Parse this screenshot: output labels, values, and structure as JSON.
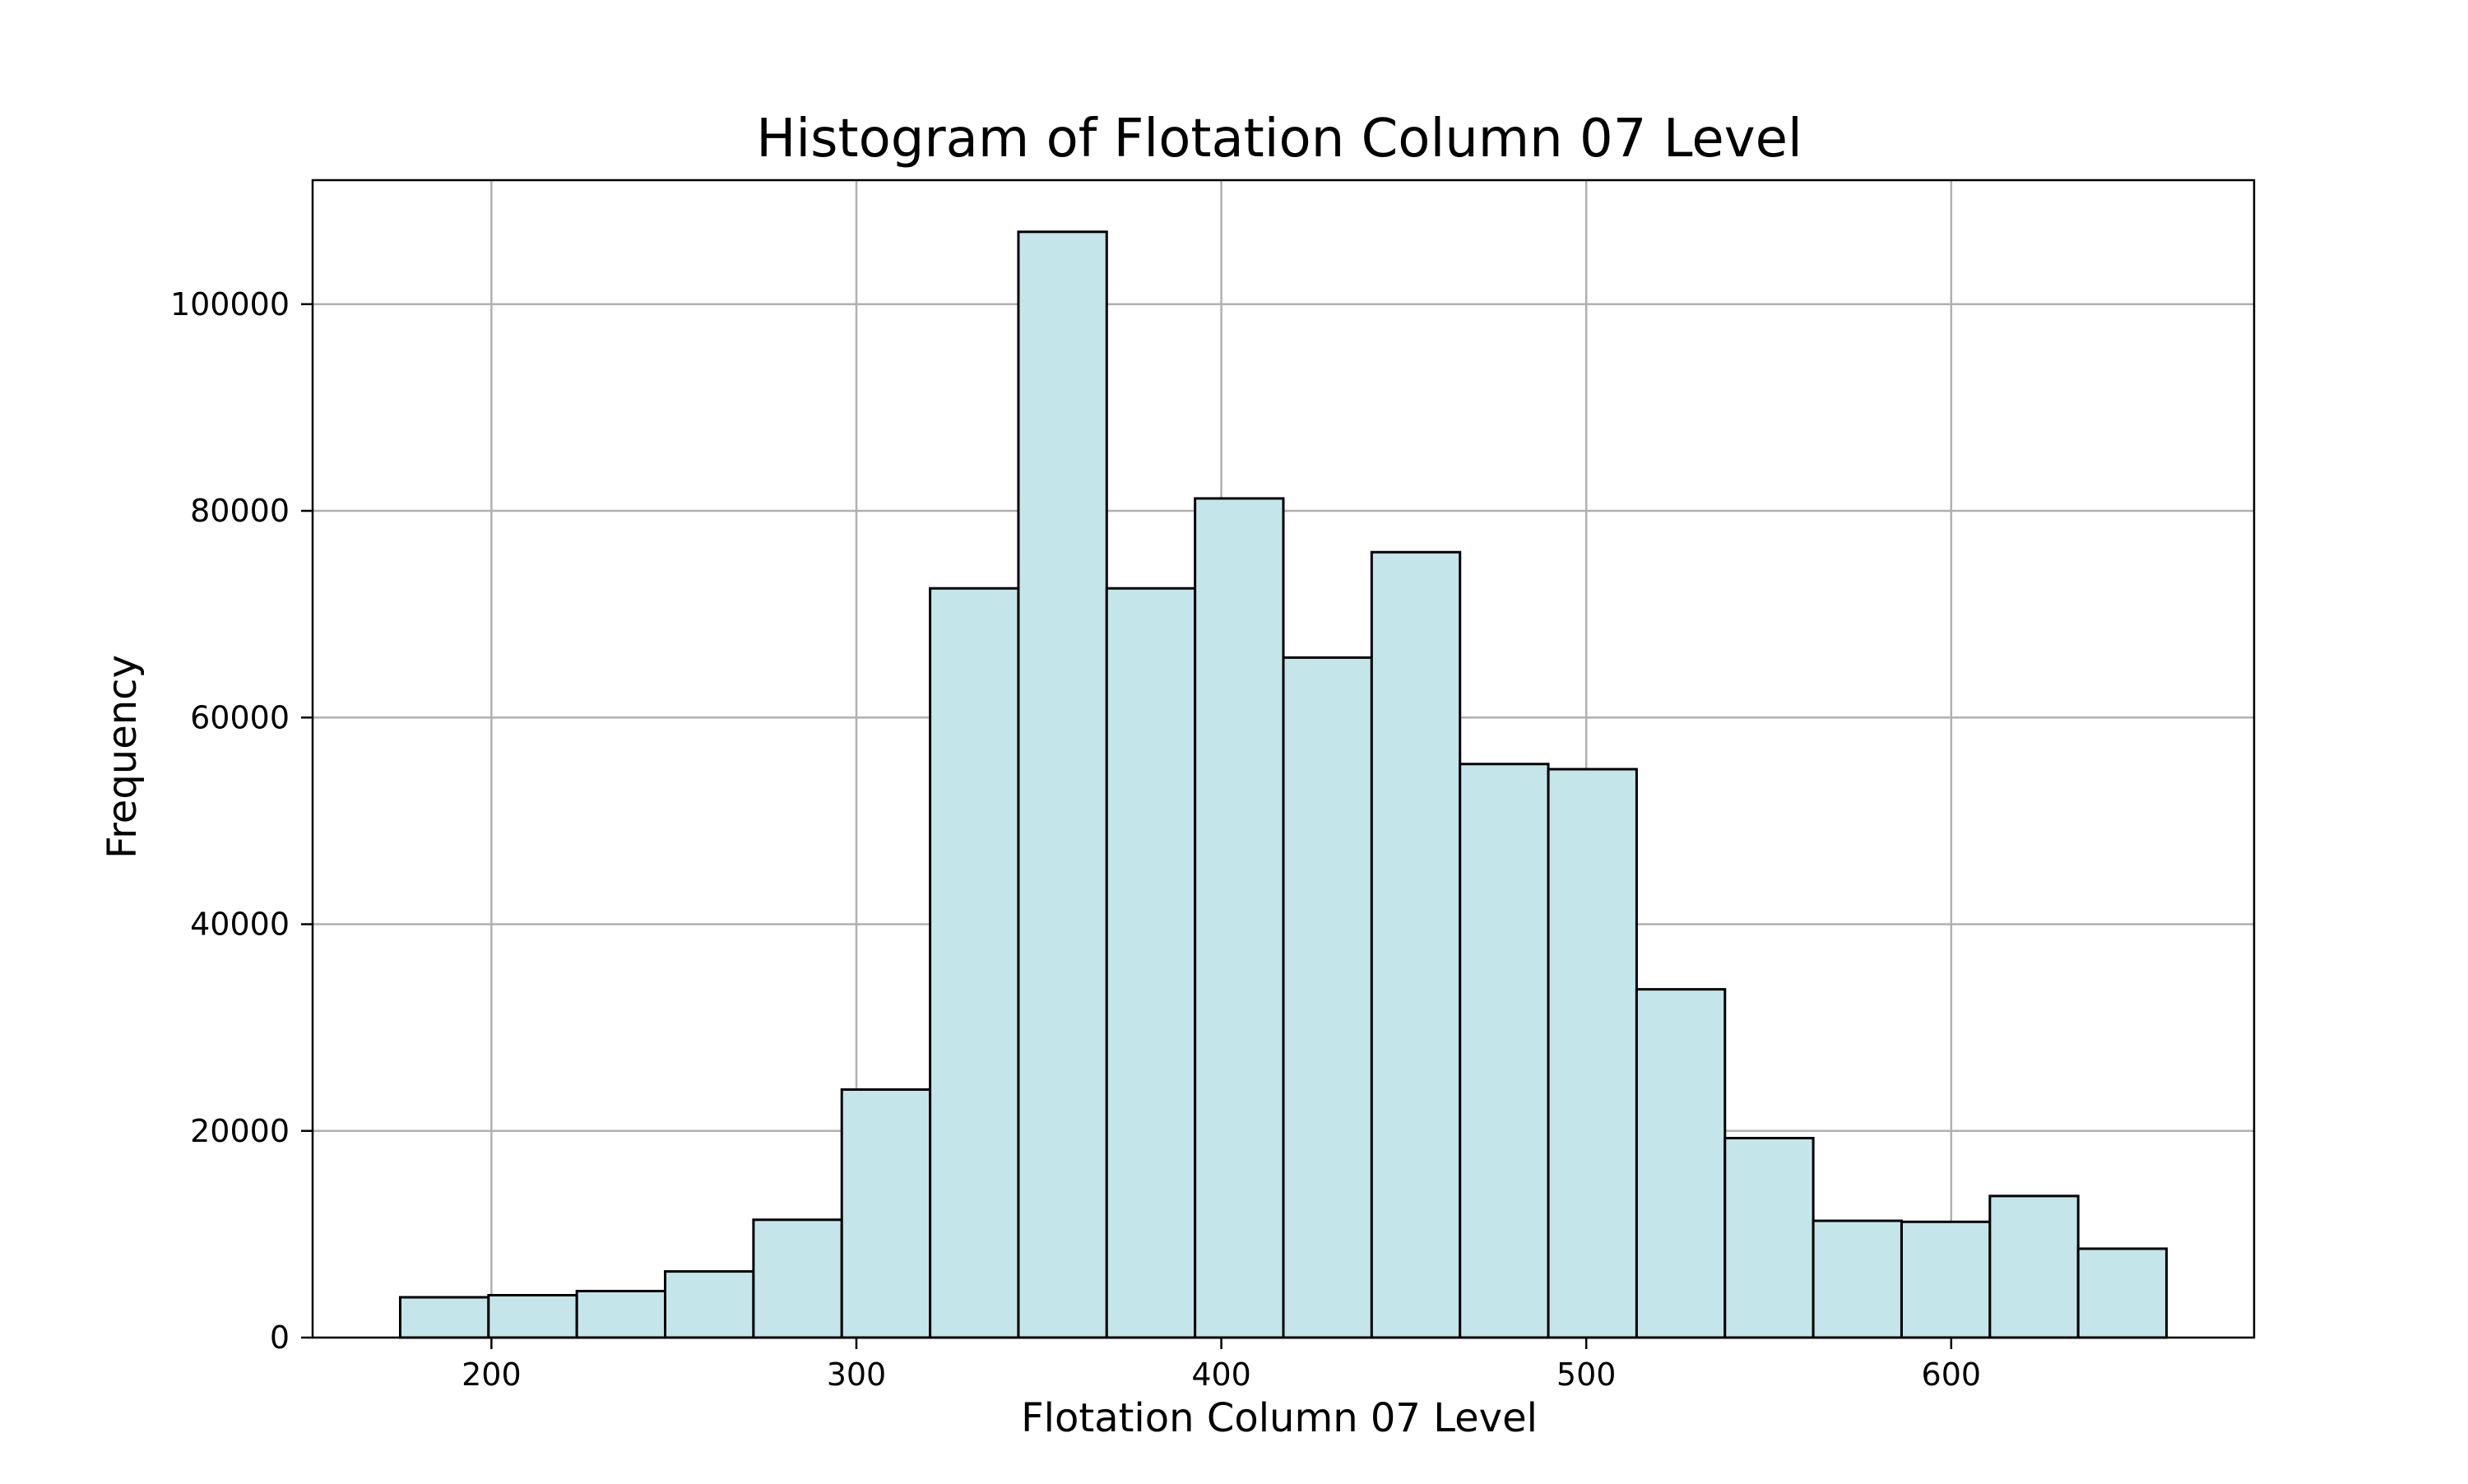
{
  "chart_data": {
    "type": "bar",
    "title": "Histogram of Flotation Column 07 Level",
    "xlabel": "Flotation Column 07 Level",
    "ylabel": "Frequency",
    "xlim": [
      151,
      683
    ],
    "ylim": [
      0,
      112000
    ],
    "xticks": [
      200,
      300,
      400,
      500,
      600
    ],
    "yticks": [
      0,
      20000,
      40000,
      60000,
      80000,
      100000
    ],
    "grid": true,
    "bar_color": "#c4e6ea",
    "edge_color": "#000000",
    "bin_edges": [
      175.0,
      199.2,
      223.4,
      247.6,
      271.8,
      296.0,
      320.2,
      344.4,
      368.6,
      392.8,
      417.0,
      441.2,
      465.4,
      489.6,
      513.8,
      538.0,
      562.2,
      586.4,
      610.6,
      634.8,
      659.0
    ],
    "values": [
      3900,
      4100,
      4500,
      6400,
      11400,
      24000,
      72500,
      107000,
      72500,
      81200,
      65800,
      76000,
      55500,
      55000,
      33700,
      19300,
      11300,
      11200,
      13700,
      8600
    ]
  }
}
